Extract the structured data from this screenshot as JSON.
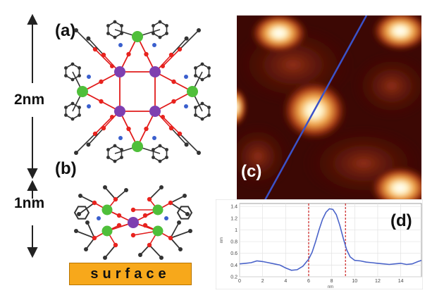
{
  "labels": {
    "panel_a": "(a)",
    "panel_b": "(b)",
    "panel_c": "(c)",
    "panel_d": "(d)",
    "dim_top": "2nm",
    "dim_bottom": "1nm",
    "surface": "surface"
  },
  "colors": {
    "bond": "#e11b1b",
    "oxygen": "#e8231e",
    "carbon": "#333333",
    "nitrogen": "#3a5fcd",
    "green_atom": "#4fbf3a",
    "purple_atom": "#7e3fb0",
    "surface": "#f7a81b",
    "scan_line": "#3b52c8",
    "profile_line": "#4a63c9",
    "marker": "#cc2222"
  },
  "chart_data": {
    "type": "line",
    "xlabel": "nm",
    "ylabel": "nm",
    "xlim": [
      0,
      15.8
    ],
    "ylim": [
      0.2,
      1.45
    ],
    "xticks": [
      0,
      2,
      4,
      6,
      8,
      10,
      12,
      14
    ],
    "yticks": [
      0.2,
      0.4,
      0.6,
      0.8,
      1.0,
      1.2,
      1.4
    ],
    "ytick_labels": [
      "0.2",
      "0.4",
      "0.6",
      "0.8",
      "1",
      "1.2",
      "1.4"
    ],
    "grid": true,
    "markers_x": [
      6.0,
      9.2
    ],
    "x": [
      0,
      0.5,
      1,
      1.5,
      2,
      2.5,
      3,
      3.5,
      4,
      4.5,
      5,
      5.5,
      6,
      6.3,
      6.6,
      6.9,
      7.2,
      7.5,
      7.8,
      8.1,
      8.4,
      8.7,
      9.0,
      9.3,
      9.6,
      10,
      10.5,
      11,
      11.5,
      12,
      12.5,
      13,
      13.5,
      14,
      14.5,
      15,
      15.5,
      15.8
    ],
    "y": [
      0.42,
      0.43,
      0.44,
      0.47,
      0.46,
      0.44,
      0.42,
      0.4,
      0.35,
      0.31,
      0.32,
      0.38,
      0.5,
      0.62,
      0.8,
      1.0,
      1.18,
      1.3,
      1.36,
      1.35,
      1.26,
      1.08,
      0.86,
      0.66,
      0.54,
      0.48,
      0.47,
      0.45,
      0.44,
      0.43,
      0.42,
      0.41,
      0.42,
      0.43,
      0.41,
      0.42,
      0.46,
      0.48
    ]
  }
}
